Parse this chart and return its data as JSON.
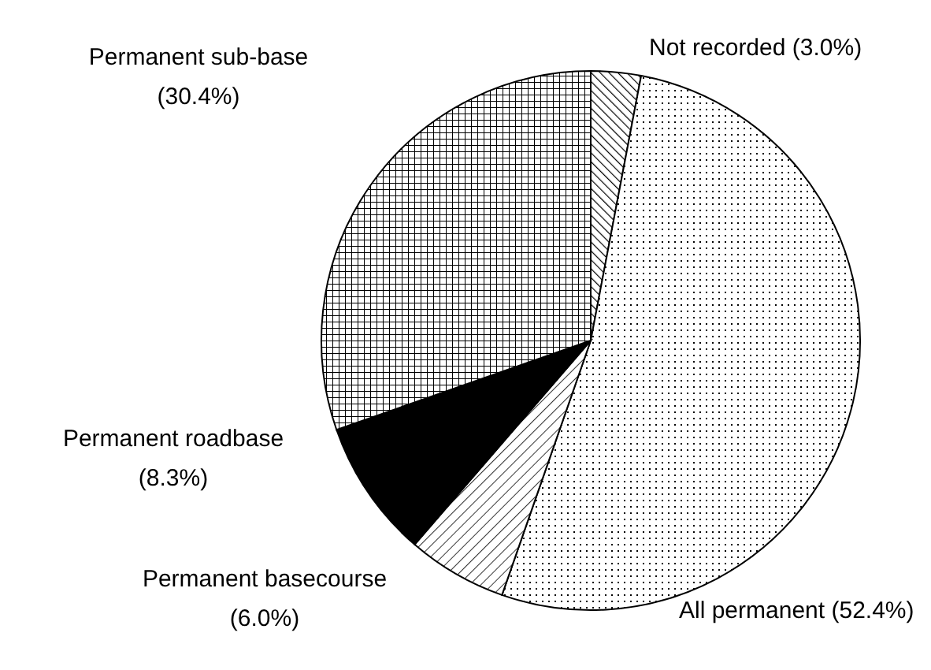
{
  "chart_data": {
    "type": "pie",
    "categories": [
      "Not recorded",
      "All permanent",
      "Permanent basecourse",
      "Permanent roadbase",
      "Permanent sub-base"
    ],
    "values": [
      3.0,
      52.4,
      6.0,
      8.3,
      30.4
    ],
    "value_labels": [
      "(3.0%)",
      "(52.4%)",
      "(6.0%)",
      "(8.3%)",
      "(30.4%)"
    ],
    "colors": [
      "#000000",
      "#000000",
      "#000000",
      "#000000",
      "#000000"
    ]
  }
}
